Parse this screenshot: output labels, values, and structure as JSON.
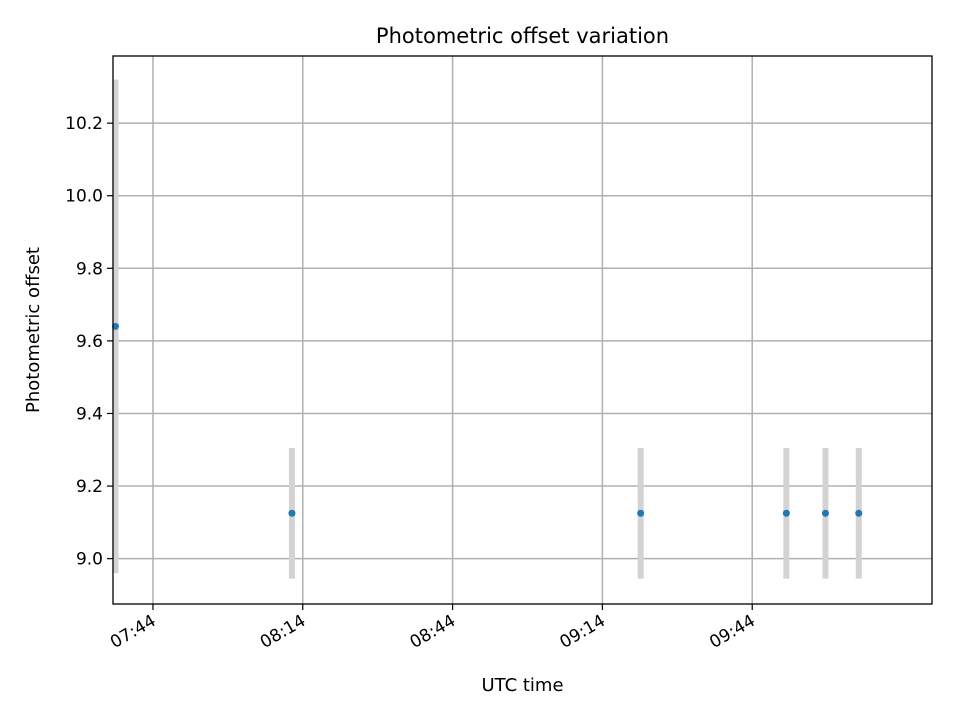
{
  "chart_data": {
    "type": "scatter",
    "title": "Photometric offset variation",
    "xlabel": "UTC time",
    "ylabel": "Photometric offset",
    "x_tick_labels": [
      "07:44",
      "08:14",
      "08:44",
      "09:14",
      "09:44"
    ],
    "y_tick_labels": [
      "9.0",
      "9.2",
      "9.4",
      "9.6",
      "9.8",
      "10.0",
      "10.2"
    ],
    "y_ticks": [
      9.0,
      9.2,
      9.4,
      9.6,
      9.8,
      10.0,
      10.2
    ],
    "xlim": [
      "07:36",
      "10:20"
    ],
    "ylim": [
      8.875,
      10.385
    ],
    "grid": true,
    "marker_color": "#1f77b4",
    "errorbar_color": "#d3d3d3",
    "points": [
      {
        "x": "07:36:30",
        "y": 9.64,
        "y_low": 8.96,
        "y_high": 10.32
      },
      {
        "x": "08:11:50",
        "y": 9.125,
        "y_low": 8.945,
        "y_high": 9.305
      },
      {
        "x": "09:21:40",
        "y": 9.125,
        "y_low": 8.945,
        "y_high": 9.305
      },
      {
        "x": "09:50:50",
        "y": 9.125,
        "y_low": 8.945,
        "y_high": 9.305
      },
      {
        "x": "09:58:40",
        "y": 9.125,
        "y_low": 8.945,
        "y_high": 9.305
      },
      {
        "x": "10:05:20",
        "y": 9.125,
        "y_low": 8.945,
        "y_high": 9.305
      }
    ]
  }
}
